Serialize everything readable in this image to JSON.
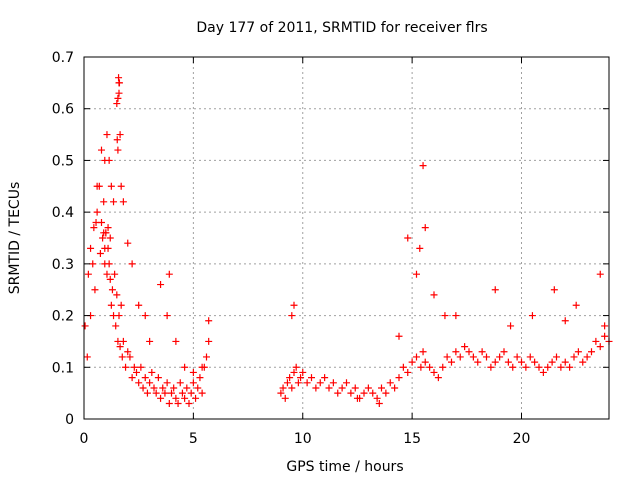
{
  "chart_data": {
    "type": "scatter",
    "title": "Day 177 of 2011, SRMTID for receiver flrs",
    "xlabel": "GPS time / hours",
    "ylabel": "SRMTID / TECUs",
    "xlim": [
      0,
      24
    ],
    "ylim": [
      0,
      0.7
    ],
    "x_ticks": [
      0,
      5,
      10,
      15,
      20
    ],
    "x_tick_labels": [
      "0",
      "5",
      "10",
      "15",
      "20"
    ],
    "y_ticks": [
      0,
      0.1,
      0.2,
      0.3,
      0.4,
      0.5,
      0.6,
      0.7
    ],
    "y_tick_labels": [
      "0",
      "0.1",
      "0.2",
      "0.3",
      "0.4",
      "0.5",
      "0.6",
      "0.7"
    ],
    "grid": true,
    "marker": "+",
    "series": [
      {
        "name": "SRMTID",
        "color": "#ff0000",
        "x": [
          0.05,
          0.15,
          0.2,
          0.3,
          0.4,
          0.5,
          0.55,
          0.6,
          0.7,
          0.75,
          0.8,
          0.85,
          0.9,
          0.95,
          1.0,
          1.05,
          1.1,
          1.15,
          1.2,
          1.25,
          1.3,
          1.35,
          1.4,
          1.45,
          1.5,
          1.55,
          1.6,
          1.65,
          1.7,
          1.75,
          1.8,
          1.9,
          2.0,
          2.1,
          2.2,
          2.3,
          2.4,
          2.5,
          2.6,
          2.7,
          2.8,
          2.9,
          3.0,
          3.1,
          3.2,
          3.3,
          3.4,
          3.5,
          3.6,
          3.7,
          3.8,
          3.9,
          4.0,
          4.1,
          4.2,
          4.3,
          4.4,
          4.5,
          4.6,
          4.7,
          4.8,
          4.9,
          5.0,
          5.1,
          5.2,
          5.3,
          5.4,
          5.5,
          5.6,
          5.7,
          9.0,
          9.1,
          9.2,
          9.3,
          9.4,
          9.5,
          9.6,
          9.7,
          9.8,
          9.9,
          10.0,
          10.2,
          10.4,
          10.6,
          10.8,
          11.0,
          11.2,
          11.4,
          11.6,
          11.8,
          12.0,
          12.2,
          12.4,
          12.6,
          12.8,
          13.0,
          13.2,
          13.4,
          13.6,
          13.8,
          14.0,
          14.2,
          14.4,
          14.6,
          14.8,
          15.0,
          15.2,
          15.4,
          15.5,
          15.6,
          15.8,
          16.0,
          16.2,
          16.4,
          16.6,
          16.8,
          17.0,
          17.2,
          17.4,
          17.6,
          17.8,
          18.0,
          18.2,
          18.4,
          18.6,
          18.8,
          19.0,
          19.2,
          19.4,
          19.6,
          19.8,
          20.0,
          20.2,
          20.4,
          20.6,
          20.8,
          21.0,
          21.2,
          21.4,
          21.6,
          21.8,
          22.0,
          22.2,
          22.4,
          22.6,
          22.8,
          23.0,
          23.2,
          23.4,
          23.6,
          23.8,
          24.0,
          0.3,
          0.45,
          0.6,
          0.8,
          0.95,
          1.05,
          1.15,
          1.25,
          1.35,
          1.5,
          1.55,
          1.6,
          1.65,
          1.7,
          1.8,
          2.0,
          2.2,
          2.5,
          2.8,
          3.0,
          3.5,
          3.8,
          3.9,
          4.2,
          4.6,
          5.0,
          5.4,
          5.7,
          9.5,
          9.6,
          14.4,
          14.8,
          15.2,
          15.35,
          15.5,
          15.6,
          16.0,
          18.8,
          21.5,
          22.5,
          23.6,
          23.8,
          1.58,
          1.6,
          1.62,
          1.55,
          1.52,
          1.0,
          0.9,
          1.1,
          1.2,
          0.95,
          12.5,
          13.5,
          16.5,
          17.0,
          19.5,
          20.5,
          22.0
        ],
        "y": [
          0.18,
          0.12,
          0.28,
          0.2,
          0.3,
          0.25,
          0.38,
          0.4,
          0.45,
          0.32,
          0.38,
          0.35,
          0.42,
          0.3,
          0.36,
          0.28,
          0.33,
          0.3,
          0.27,
          0.22,
          0.25,
          0.2,
          0.28,
          0.18,
          0.24,
          0.15,
          0.2,
          0.14,
          0.22,
          0.12,
          0.15,
          0.1,
          0.13,
          0.12,
          0.08,
          0.1,
          0.09,
          0.07,
          0.1,
          0.06,
          0.08,
          0.05,
          0.07,
          0.09,
          0.06,
          0.05,
          0.08,
          0.04,
          0.06,
          0.05,
          0.07,
          0.03,
          0.05,
          0.06,
          0.04,
          0.03,
          0.07,
          0.05,
          0.04,
          0.06,
          0.03,
          0.05,
          0.07,
          0.04,
          0.06,
          0.08,
          0.05,
          0.1,
          0.12,
          0.15,
          0.05,
          0.06,
          0.04,
          0.07,
          0.08,
          0.06,
          0.09,
          0.1,
          0.07,
          0.08,
          0.09,
          0.07,
          0.08,
          0.06,
          0.07,
          0.08,
          0.06,
          0.07,
          0.05,
          0.06,
          0.07,
          0.05,
          0.06,
          0.04,
          0.05,
          0.06,
          0.05,
          0.04,
          0.06,
          0.05,
          0.07,
          0.06,
          0.08,
          0.1,
          0.09,
          0.11,
          0.12,
          0.1,
          0.13,
          0.11,
          0.1,
          0.09,
          0.08,
          0.1,
          0.12,
          0.11,
          0.13,
          0.12,
          0.14,
          0.13,
          0.12,
          0.11,
          0.13,
          0.12,
          0.1,
          0.11,
          0.12,
          0.13,
          0.11,
          0.1,
          0.12,
          0.11,
          0.1,
          0.12,
          0.11,
          0.1,
          0.09,
          0.1,
          0.11,
          0.12,
          0.1,
          0.11,
          0.1,
          0.12,
          0.13,
          0.11,
          0.12,
          0.13,
          0.15,
          0.14,
          0.16,
          0.15,
          0.33,
          0.37,
          0.45,
          0.52,
          0.5,
          0.55,
          0.5,
          0.45,
          0.42,
          0.61,
          0.62,
          0.65,
          0.55,
          0.45,
          0.42,
          0.34,
          0.3,
          0.22,
          0.2,
          0.15,
          0.26,
          0.2,
          0.28,
          0.15,
          0.1,
          0.09,
          0.1,
          0.19,
          0.2,
          0.22,
          0.16,
          0.35,
          0.28,
          0.33,
          0.49,
          0.37,
          0.24,
          0.25,
          0.25,
          0.22,
          0.28,
          0.18,
          0.66,
          0.63,
          0.65,
          0.52,
          0.54,
          0.36,
          0.36,
          0.37,
          0.35,
          0.33,
          0.04,
          0.03,
          0.2,
          0.2,
          0.18,
          0.2,
          0.19
        ]
      }
    ]
  }
}
